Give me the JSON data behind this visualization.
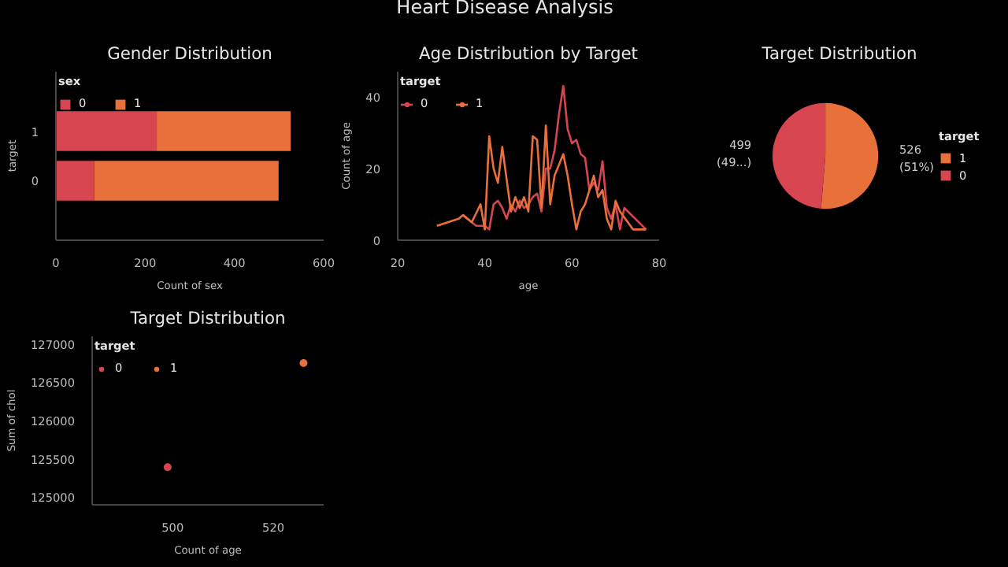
{
  "chart_data": [
    {
      "type": "other",
      "title": "Heart Disease Analysis"
    },
    {
      "type": "bar",
      "title": "Gender Distribution",
      "orientation": "horizontal",
      "stacked": true,
      "xlabel": "Count of sex",
      "ylabel": "target",
      "legend_title": "sex",
      "legend": "top left",
      "categories": [
        "1",
        "0"
      ],
      "series": [
        {
          "name": "0",
          "color": "#d64550",
          "values": [
            226,
            86
          ]
        },
        {
          "name": "1",
          "color": "#e8703a",
          "values": [
            300,
            413
          ]
        }
      ],
      "xlim": [
        0,
        600
      ],
      "xticks": [
        0,
        200,
        400,
        600
      ]
    },
    {
      "type": "line",
      "title": "Age Distribution by Target",
      "xlabel": "age",
      "ylabel": "Count of age",
      "legend_title": "target",
      "legend": "top left",
      "series": [
        {
          "name": "0",
          "color": "#d64550",
          "x": [
            35,
            38,
            40,
            41,
            42,
            43,
            44,
            45,
            46,
            47,
            48,
            49,
            50,
            51,
            52,
            53,
            54,
            55,
            56,
            57,
            58,
            59,
            60,
            61,
            62,
            63,
            64,
            65,
            66,
            67,
            68,
            69,
            70,
            71,
            72,
            77
          ],
          "values": [
            7,
            4,
            4,
            3,
            10,
            11,
            9,
            6,
            10,
            8,
            11,
            9,
            10,
            12,
            13,
            8,
            20,
            20,
            25,
            35,
            43,
            31,
            27,
            28,
            24,
            23,
            14,
            16,
            14,
            22,
            9,
            6,
            10,
            3,
            9,
            3
          ]
        },
        {
          "name": "1",
          "color": "#e8703a",
          "x": [
            29,
            34,
            35,
            37,
            39,
            40,
            41,
            42,
            43,
            44,
            45,
            46,
            47,
            48,
            49,
            50,
            51,
            52,
            53,
            54,
            55,
            56,
            57,
            58,
            59,
            60,
            61,
            62,
            63,
            64,
            65,
            66,
            67,
            68,
            69,
            70,
            71,
            74,
            76,
            77
          ],
          "values": [
            4,
            6,
            7,
            5,
            10,
            3,
            29,
            20,
            16,
            26,
            17,
            8,
            12,
            9,
            12,
            8,
            29,
            28,
            9,
            32,
            10,
            18,
            21,
            24,
            18,
            10,
            3,
            8,
            10,
            14,
            18,
            12,
            14,
            6,
            3,
            11,
            8,
            3,
            3,
            3
          ]
        }
      ],
      "xlim": [
        20,
        80
      ],
      "xticks": [
        20,
        40,
        60,
        80
      ],
      "ylim": [
        0,
        47
      ],
      "yticks": [
        0,
        20,
        40
      ]
    },
    {
      "type": "pie",
      "title": "Target Distribution",
      "legend_title": "target",
      "legend": "right",
      "categories": [
        "1",
        "0"
      ],
      "values": [
        526,
        499
      ],
      "colors": [
        "#e8703a",
        "#d64550"
      ],
      "value_labels": [
        "526\n(51%)",
        "499\n(49...)"
      ]
    },
    {
      "type": "scatter",
      "title": "Target Distribution",
      "xlabel": "Count of age",
      "ylabel": "Sum of chol",
      "legend_title": "target",
      "legend": "top left",
      "marker": "circle",
      "series": [
        {
          "name": "0",
          "color": "#d64550",
          "x": [
            499
          ],
          "values": [
            125390
          ]
        },
        {
          "name": "1",
          "color": "#e8703a",
          "x": [
            526
          ],
          "values": [
            126750
          ]
        }
      ],
      "xlim": [
        484,
        530
      ],
      "xticks": [
        500,
        520
      ],
      "ylim": [
        124900,
        127100
      ],
      "yticks": [
        125000,
        125500,
        126000,
        126500,
        127000
      ]
    }
  ]
}
